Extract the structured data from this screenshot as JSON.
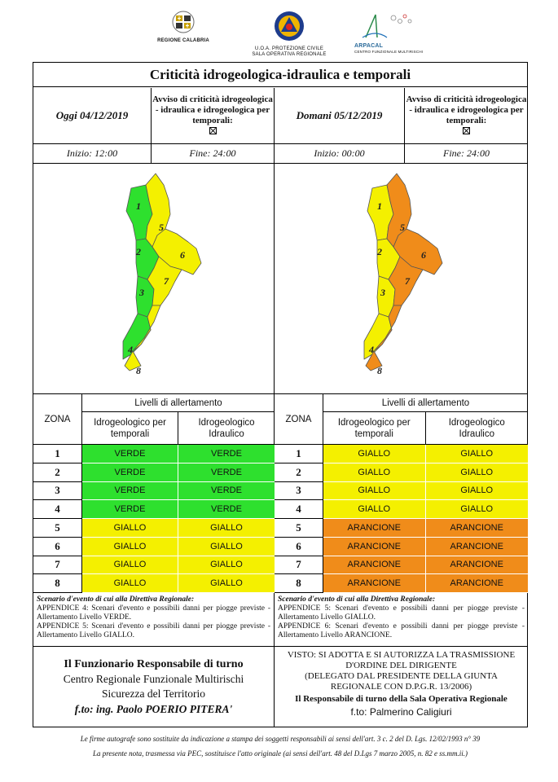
{
  "header": {
    "logo_calabria": "REGIONE CALABRIA",
    "logo_pc_line1": "U.O.A. PROTEZIONE CIVILE",
    "logo_pc_line2": "SALA OPERATIVA REGIONALE",
    "logo_arpacal": "ARPACAL",
    "logo_arpacal_sub": "CENTRO FUNZIONALE MULTIRISCHI"
  },
  "title": "Criticità idrogeologica-idraulica e temporali",
  "today": {
    "label": "Oggi 04/12/2019",
    "avviso": "Avviso di criticità idrogeologica - idraulica e idrogeologica per temporali:",
    "start": "Inizio: 12:00",
    "end": "Fine: 24:00"
  },
  "tomorrow": {
    "label": "Domani 05/12/2019",
    "avviso": "Avviso di criticità idrogeologica - idraulica e idrogeologica per temporali:",
    "start": "Inizio: 00:00",
    "end": "Fine: 24:00"
  },
  "colors": {
    "verde": "#2ee02e",
    "giallo": "#f4f000",
    "arancione": "#f08c1a"
  },
  "table_labels": {
    "zona": "ZONA",
    "livelli": "Livelli di allertamento",
    "col1": "Idrogeologico per temporali",
    "col2": "Idrogeologico Idraulico"
  },
  "today_levels": [
    {
      "zone": "1",
      "a": "VERDE",
      "b": "VERDE"
    },
    {
      "zone": "2",
      "a": "VERDE",
      "b": "VERDE"
    },
    {
      "zone": "3",
      "a": "VERDE",
      "b": "VERDE"
    },
    {
      "zone": "4",
      "a": "VERDE",
      "b": "VERDE"
    },
    {
      "zone": "5",
      "a": "GIALLO",
      "b": "GIALLO"
    },
    {
      "zone": "6",
      "a": "GIALLO",
      "b": "GIALLO"
    },
    {
      "zone": "7",
      "a": "GIALLO",
      "b": "GIALLO"
    },
    {
      "zone": "8",
      "a": "GIALLO",
      "b": "GIALLO"
    }
  ],
  "tomorrow_levels": [
    {
      "zone": "1",
      "a": "GIALLO",
      "b": "GIALLO"
    },
    {
      "zone": "2",
      "a": "GIALLO",
      "b": "GIALLO"
    },
    {
      "zone": "3",
      "a": "GIALLO",
      "b": "GIALLO"
    },
    {
      "zone": "4",
      "a": "GIALLO",
      "b": "GIALLO"
    },
    {
      "zone": "5",
      "a": "ARANCIONE",
      "b": "ARANCIONE"
    },
    {
      "zone": "6",
      "a": "ARANCIONE",
      "b": "ARANCIONE"
    },
    {
      "zone": "7",
      "a": "ARANCIONE",
      "b": "ARANCIONE"
    },
    {
      "zone": "8",
      "a": "ARANCIONE",
      "b": "ARANCIONE"
    }
  ],
  "scenario_today": {
    "title": "Scenario d'evento di cui alla Direttiva Regionale:",
    "line1": "APPENDICE 4: Scenari d'evento e possibili danni per piogge previste - Allertamento Livello VERDE.",
    "line2": "APPENDICE 5: Scenari d'evento e possibili danni per piogge previste - Allertamento Livello GIALLO."
  },
  "scenario_tomorrow": {
    "title": "Scenario d'evento di cui alla Direttiva Regionale:",
    "line1": "APPENDICE 5: Scenari d'evento e possibili danni per piogge previste - Allertamento Livello GIALLO.",
    "line2": "APPENDICE 6: Scenari d'evento e possibili danni per piogge previste - Allertamento Livello ARANCIONE."
  },
  "sign_left": {
    "l1": "Il Funzionario Responsabile di turno",
    "l2": "Centro Regionale Funzionale Multirischi",
    "l3": "Sicurezza del Territorio",
    "l4": "f.to: ing. Paolo POERIO PITERA'"
  },
  "sign_right": {
    "l1": "VISTO: SI ADOTTA E SI AUTORIZZA LA TRASMISSIONE",
    "l2": "D'ORDINE DEL DIRIGENTE",
    "l3": "(DELEGATO DAL PRESIDENTE DELLA GIUNTA",
    "l4": "REGIONALE CON D.P.G.R. 13/2006)",
    "l5": "Il Responsabile di turno della Sala Operativa Regionale",
    "l6": "f.to: Palmerino Caligiuri"
  },
  "footnote1": "Le firme autografe sono sostituite da indicazione a stampa dei soggetti responsabili ai sensi dell'art. 3 c. 2 del D. Lgs. 12/02/1993 n° 39",
  "footnote2": "La presente nota, trasmessa via PEC, sostituisce l'atto originale (ai sensi dell'art. 48 del D.Lgs 7 marzo 2005, n. 82 e ss.mm.ii.)",
  "map_zones": [
    "1",
    "2",
    "3",
    "4",
    "5",
    "6",
    "7",
    "8"
  ],
  "map_today": [
    "VERDE",
    "VERDE",
    "VERDE",
    "VERDE",
    "GIALLO",
    "GIALLO",
    "GIALLO",
    "GIALLO"
  ],
  "map_tomorrow": [
    "GIALLO",
    "GIALLO",
    "GIALLO",
    "GIALLO",
    "ARANCIONE",
    "ARANCIONE",
    "ARANCIONE",
    "ARANCIONE"
  ]
}
